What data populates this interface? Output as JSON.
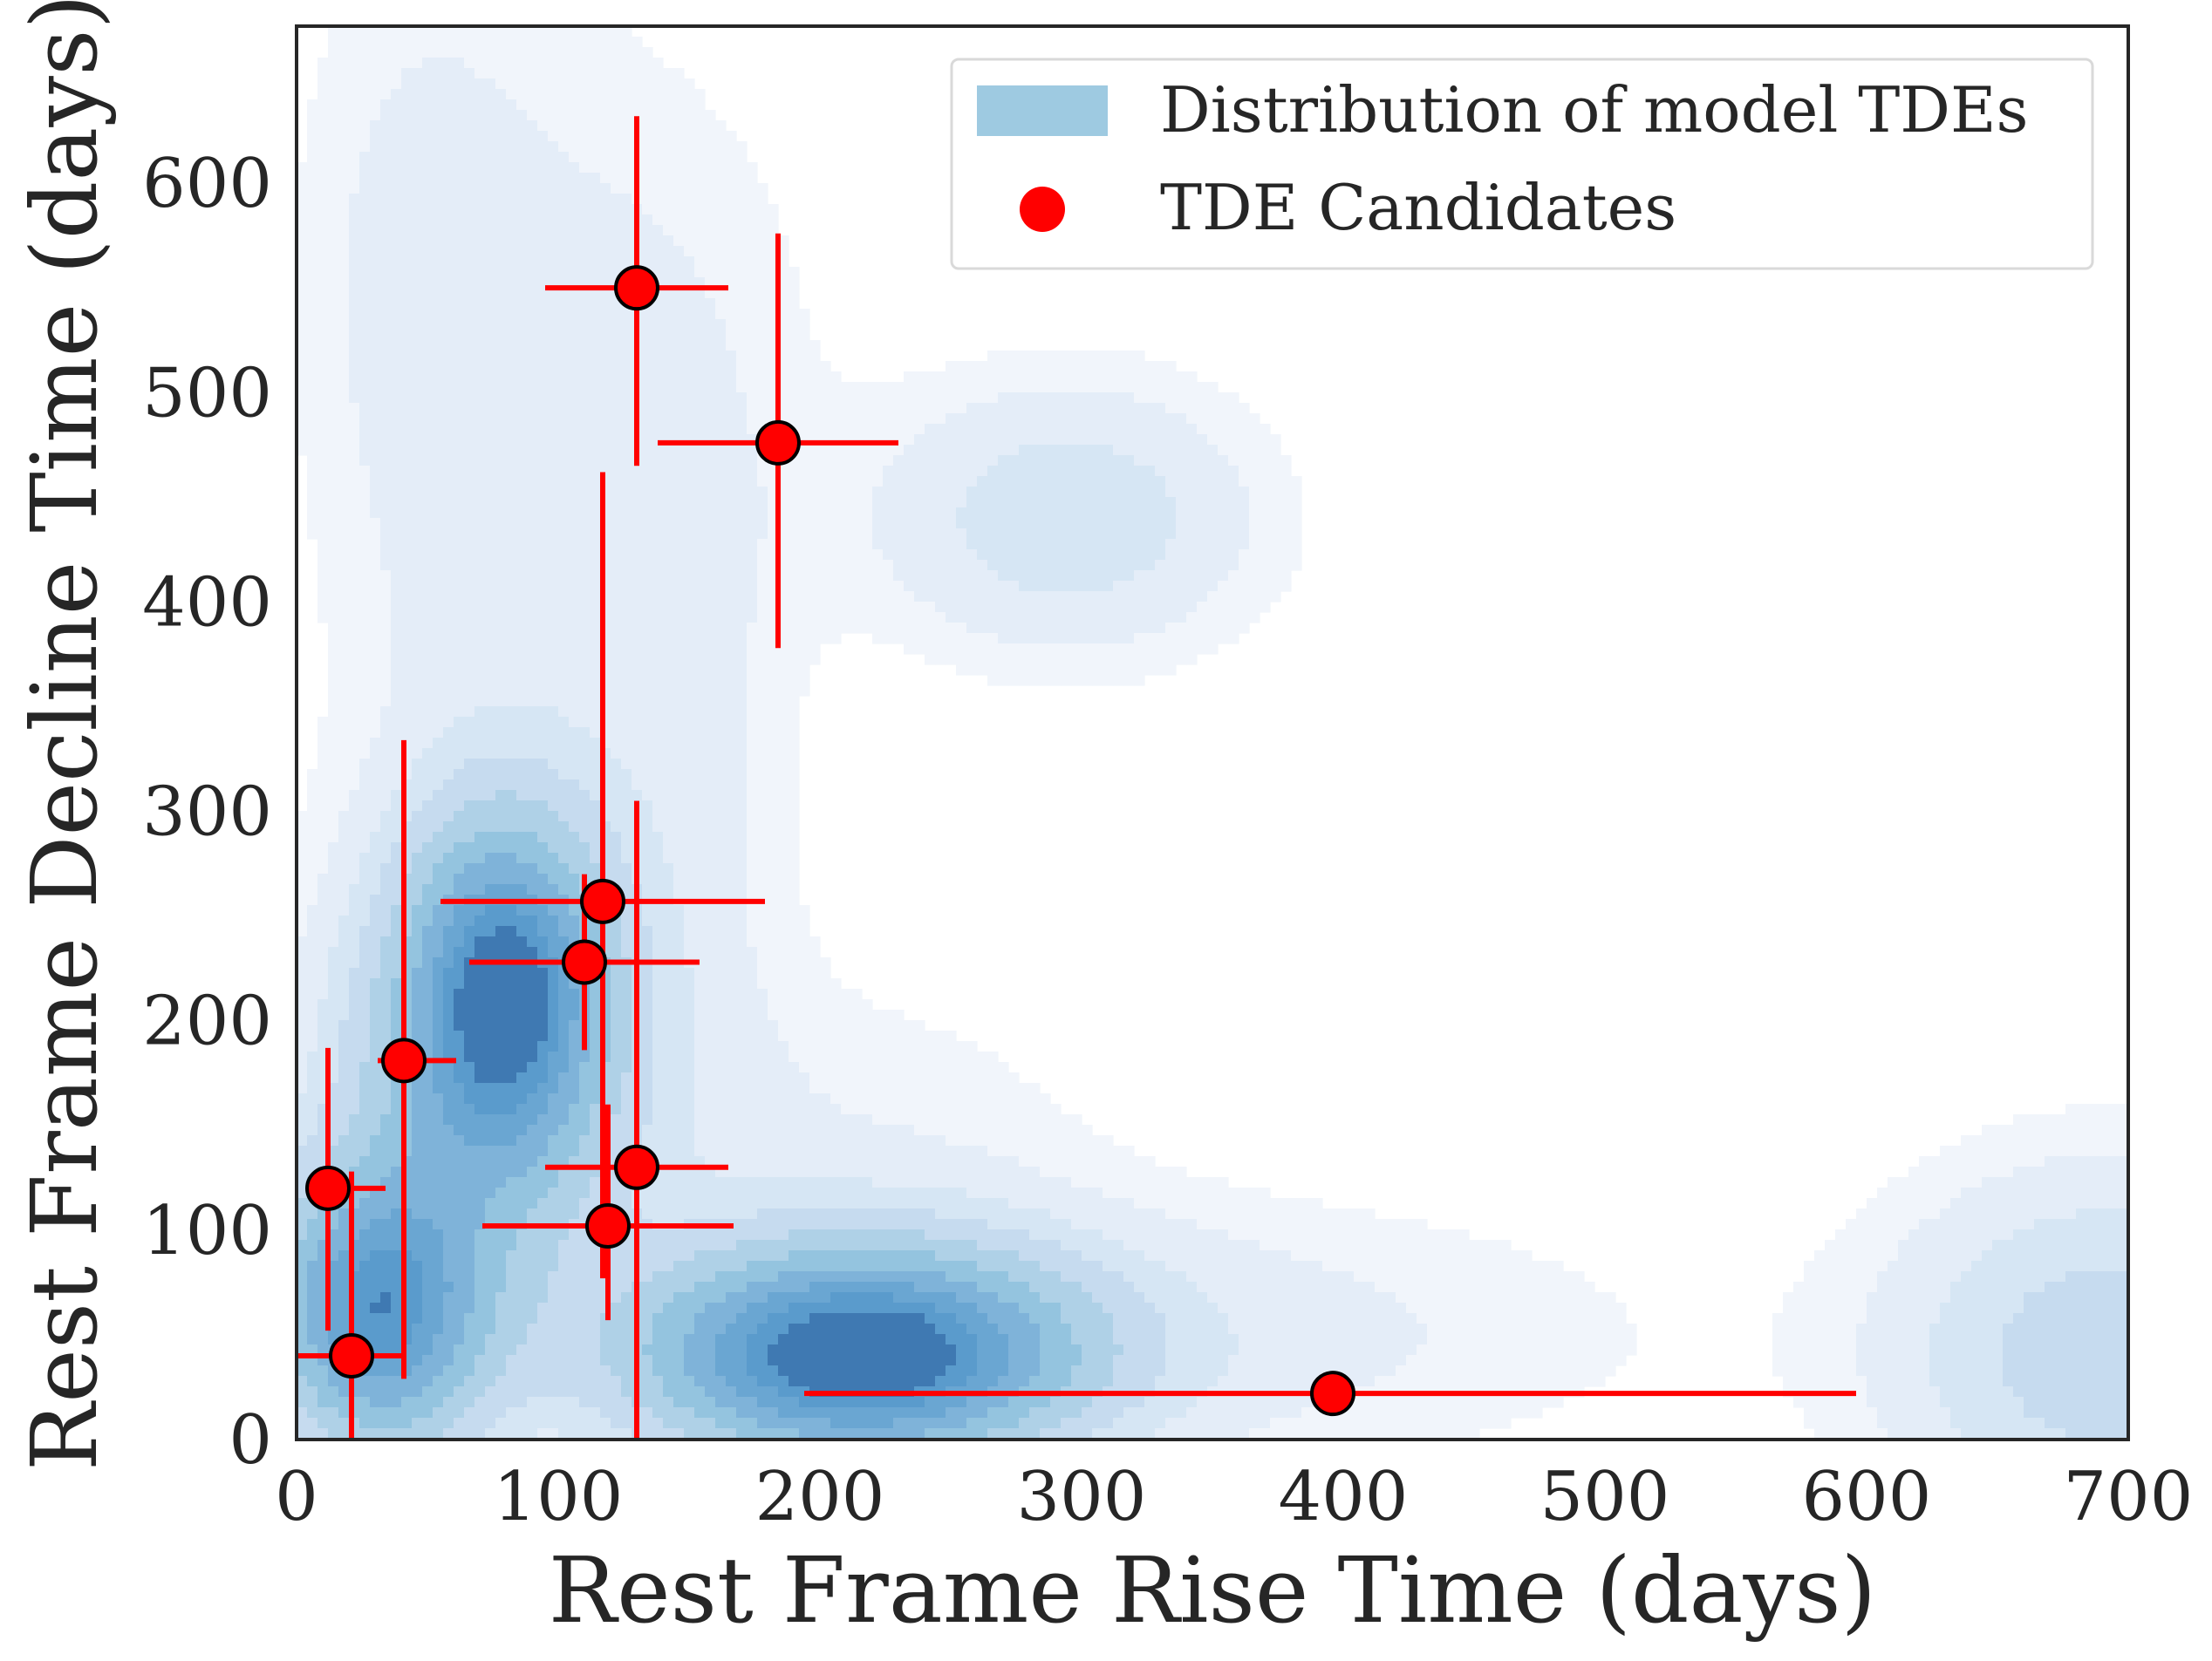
{
  "chart_data": {
    "type": "scatter",
    "xlabel": "Rest Frame Rise Time (days)",
    "ylabel": "Rest Frame Decline Time (days)",
    "xlim": [
      0,
      700
    ],
    "ylim": [
      0,
      675
    ],
    "xticks": [
      0,
      100,
      200,
      300,
      400,
      500,
      600,
      700
    ],
    "yticks": [
      0,
      100,
      200,
      300,
      400,
      500,
      600
    ],
    "grid": false,
    "legend": {
      "position": "top-right",
      "entries": [
        {
          "label": "Distribution of model TDEs",
          "kind": "patch",
          "color": "#9ecae1"
        },
        {
          "label": "TDE Candidates",
          "kind": "marker",
          "color": "#ff0000"
        }
      ]
    },
    "density": {
      "name": "Distribution of model TDEs",
      "cmap": [
        "#f1f5fb",
        "#e4edf8",
        "#d6e6f4",
        "#c6dbef",
        "#afd1e7",
        "#94c4df",
        "#7fb3d9",
        "#6aa6d2",
        "#5a9bcc",
        "#3f79b2"
      ],
      "components": [
        {
          "cx": 215,
          "cy": 40,
          "sx": 55,
          "sy": 34,
          "w": 1.0
        },
        {
          "cx": 30,
          "cy": 60,
          "sx": 28,
          "sy": 45,
          "w": 0.78
        },
        {
          "cx": 80,
          "cy": 215,
          "sx": 26,
          "sy": 55,
          "w": 0.8
        },
        {
          "cx": 65,
          "cy": 155,
          "sx": 40,
          "sy": 75,
          "w": 0.3
        },
        {
          "cx": 320,
          "cy": 50,
          "sx": 130,
          "sy": 45,
          "w": 0.1
        },
        {
          "cx": 295,
          "cy": 440,
          "sx": 50,
          "sy": 45,
          "w": 0.18
        },
        {
          "cx": 690,
          "cy": 40,
          "sx": 55,
          "sy": 60,
          "w": 0.25
        },
        {
          "cx": 75,
          "cy": 420,
          "sx": 45,
          "sy": 210,
          "w": 0.08
        },
        {
          "cx": 40,
          "cy": 570,
          "sx": 30,
          "sy": 100,
          "w": 0.05
        },
        {
          "cx": 145,
          "cy": 520,
          "sx": 45,
          "sy": 100,
          "w": 0.05
        },
        {
          "cx": 150,
          "cy": 300,
          "sx": 30,
          "sy": 130,
          "w": 0.07
        },
        {
          "cx": 210,
          "cy": 140,
          "sx": 70,
          "sy": 60,
          "w": 0.06
        }
      ]
    },
    "series": [
      {
        "name": "TDE Candidates",
        "color": "#ff0000",
        "points": [
          {
            "x": 130,
            "y": 550,
            "xerr": [
              35,
              35
            ],
            "yerr": [
              85,
              82
            ]
          },
          {
            "x": 184,
            "y": 476,
            "xerr": [
              46,
              46
            ],
            "yerr": [
              98,
              100
            ]
          },
          {
            "x": 117,
            "y": 257,
            "xerr": [
              62,
              62
            ],
            "yerr": [
              180,
              205
            ]
          },
          {
            "x": 110,
            "y": 228,
            "xerr": [
              44,
              44
            ],
            "yerr": [
              42,
              42
            ]
          },
          {
            "x": 41,
            "y": 181,
            "xerr": [
              10,
              20
            ],
            "yerr": [
              152,
              153
            ]
          },
          {
            "x": 12,
            "y": 120,
            "xerr": [
              6,
              22
            ],
            "yerr": [
              68,
              67
            ]
          },
          {
            "x": 130,
            "y": 130,
            "xerr": [
              35,
              35
            ],
            "yerr": [
              175,
              175
            ]
          },
          {
            "x": 119,
            "y": 102,
            "xerr": [
              48,
              48
            ],
            "yerr": [
              45,
              58
            ]
          },
          {
            "x": 21,
            "y": 40,
            "xerr": [
              21,
              20
            ],
            "yerr": [
              40,
              88
            ]
          },
          {
            "x": 396,
            "y": 22,
            "xerr": [
              202,
              200
            ],
            "yerr": [
              0,
              0
            ]
          }
        ]
      }
    ]
  }
}
